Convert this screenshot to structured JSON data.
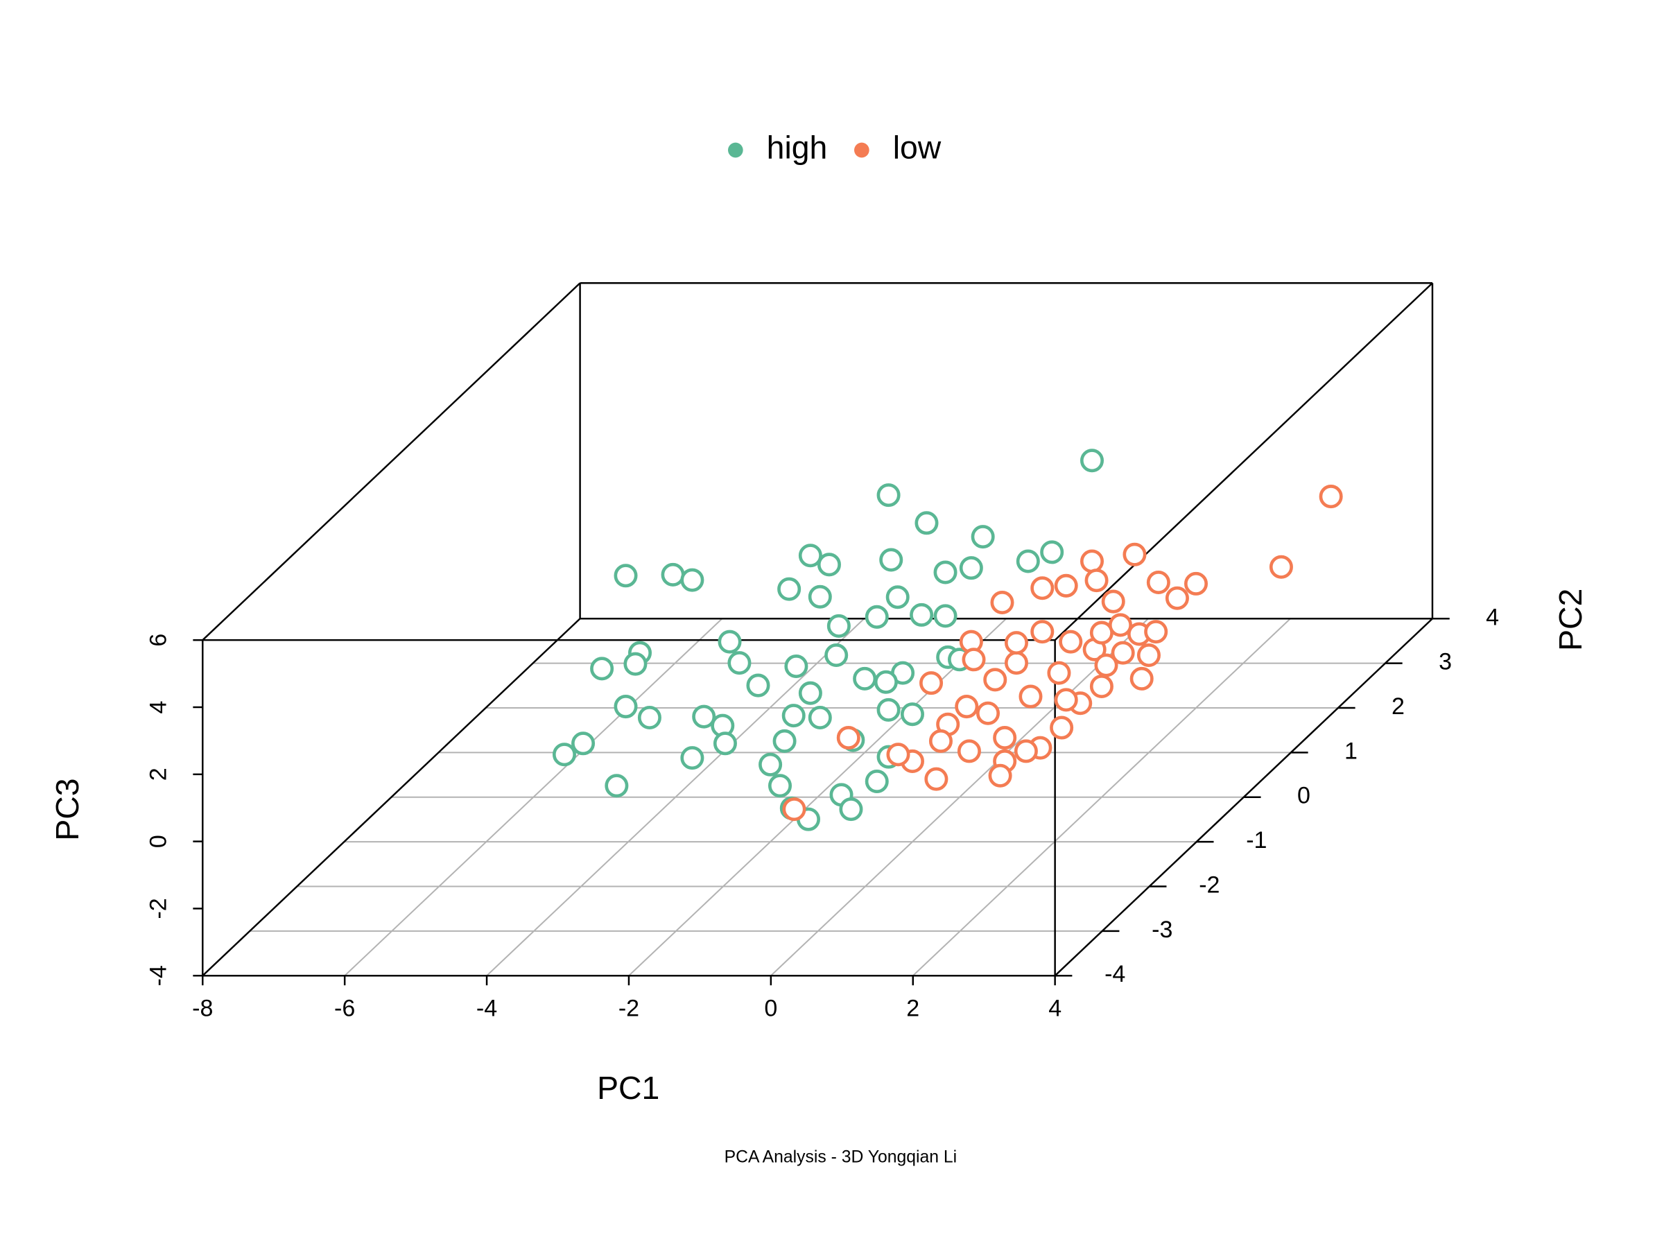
{
  "chart_data": {
    "type": "scatter3d",
    "caption": "PCA Analysis - 3D Yongqian Li",
    "xlabel": "PC1",
    "ylabel": "PC2",
    "zlabel": "PC3",
    "xlim": [
      -8,
      4
    ],
    "ylim": [
      -4,
      4
    ],
    "zlim": [
      -4,
      6
    ],
    "xticks": [
      -8,
      -6,
      -4,
      -2,
      0,
      2,
      4
    ],
    "yticks": [
      -4,
      -3,
      -2,
      -1,
      0,
      1,
      2,
      3,
      4
    ],
    "zticks": [
      -4,
      -2,
      0,
      2,
      4,
      6
    ],
    "grid": true,
    "legend": "top",
    "series": [
      {
        "name": "high",
        "color": "#5ab794",
        "x": [
          1.2,
          -1.0,
          0.2,
          -1.0,
          -4.7,
          -4.7,
          -3.1,
          -2.1,
          -2.5,
          -0.3,
          -0.2,
          -0.5,
          -2.4,
          -1.3,
          -2.2,
          0.3,
          1.3,
          -4.9,
          -5.3,
          -3.5,
          -5.7,
          -4.5,
          -3.9,
          -4.7,
          -3.7,
          -3.6,
          -4.0,
          -3.1,
          -3.3,
          -3.9,
          -3.1,
          -2.0,
          -1.2,
          -1.7,
          -0.8,
          -1.0,
          -0.2,
          -0.5,
          -1.0,
          -3.5,
          -2.3,
          -1.8,
          -2.1,
          -3.0,
          -1.7,
          -2.4,
          -0.5,
          -1.0,
          0.0,
          -1.2,
          -0.2,
          0.5,
          0.0,
          -2.0,
          -0.8,
          -1.3,
          -1.5,
          -1.7
        ],
        "y": [
          1,
          0,
          -1,
          2,
          0,
          1,
          -1,
          0,
          1,
          -1,
          0,
          1,
          0,
          -1,
          2,
          1,
          0,
          -1,
          0,
          -2,
          1,
          0,
          -1,
          0,
          -1,
          0,
          1,
          -1,
          0,
          1,
          0,
          -1,
          -2,
          -1,
          -2,
          -1,
          -2,
          -1,
          0,
          1,
          0,
          -1,
          0,
          1,
          0,
          1,
          -1,
          0,
          -1,
          1,
          0,
          -1,
          0,
          1,
          0,
          -1,
          0,
          1
        ],
        "z": [
          4.7,
          5.0,
          5.5,
          1.1,
          2.6,
          1.3,
          3.8,
          3.2,
          1.6,
          4.4,
          2.7,
          1.5,
          2.2,
          3.3,
          -0.7,
          1.7,
          3.3,
          -1.4,
          -2.4,
          -1.0,
          -1.5,
          0.3,
          1.3,
          -1.3,
          -0.3,
          -1.6,
          -3.2,
          -1.5,
          -2.4,
          -0.7,
          0.0,
          -1.7,
          -1.0,
          -3.0,
          -2.0,
          -2.6,
          -1.7,
          -2.2,
          -2.8,
          -2.0,
          -0.1,
          -1.0,
          -0.9,
          -2.9,
          1.1,
          -1.1,
          2.7,
          -1.4,
          -0.2,
          0.1,
          1.4,
          1.5,
          0.1,
          -1.8,
          -0.3,
          -0.3,
          -2.3,
          -1.9
        ]
      },
      {
        "name": "low",
        "color": "#f47c53",
        "x": [
          3.9,
          3.2,
          1.8,
          2.0,
          2.4,
          2.8,
          1.2,
          0.6,
          1.5,
          0.5,
          0.6,
          1.5,
          1.2,
          2.1,
          2.3,
          1.9,
          2.0,
          1.7,
          2.1,
          1.8,
          1.3,
          1.9,
          0.8,
          1.0,
          0.0,
          -0.2,
          -0.9,
          -1.0,
          -0.4,
          0.5,
          0.1,
          0.4,
          1.3,
          1.0,
          1.4,
          0.9,
          1.9,
          0.8,
          0.5,
          -0.5,
          0.8,
          0.5,
          2.0,
          1.6,
          1.6,
          0.4,
          0.2,
          1.5,
          1.4,
          2.0
        ],
        "y": [
          2,
          2,
          1,
          2,
          1,
          0,
          1,
          2,
          0,
          1,
          0,
          1,
          2,
          1,
          0,
          1,
          0,
          0,
          -1,
          -1,
          -1,
          -2,
          -1,
          -2,
          -1,
          -1,
          -1,
          -2,
          0,
          -1,
          0,
          0,
          -1,
          0,
          0,
          1,
          0,
          0,
          0,
          1,
          0,
          1,
          0,
          1,
          -1,
          -1,
          0,
          0,
          1,
          1
        ],
        "z": [
          2.3,
          0.2,
          1.9,
          -0.3,
          0.6,
          2.4,
          1.7,
          -0.2,
          2.3,
          0.9,
          1.8,
          0.5,
          -1.8,
          -0.4,
          0.3,
          -1.8,
          -0.7,
          -1.2,
          -0.6,
          -1.2,
          -1.6,
          -0.7,
          -1.3,
          -0.8,
          -1.6,
          -1.4,
          -0.9,
          -1.7,
          -0.6,
          -0.5,
          -1.3,
          -1.5,
          -0.9,
          -1.0,
          -0.3,
          -0.7,
          0.4,
          0.0,
          -0.5,
          -0.7,
          0.6,
          -0.4,
          0.9,
          -0.2,
          -1.3,
          -1.0,
          0.1,
          -1.1,
          -1.4,
          -1.1
        ]
      }
    ]
  }
}
